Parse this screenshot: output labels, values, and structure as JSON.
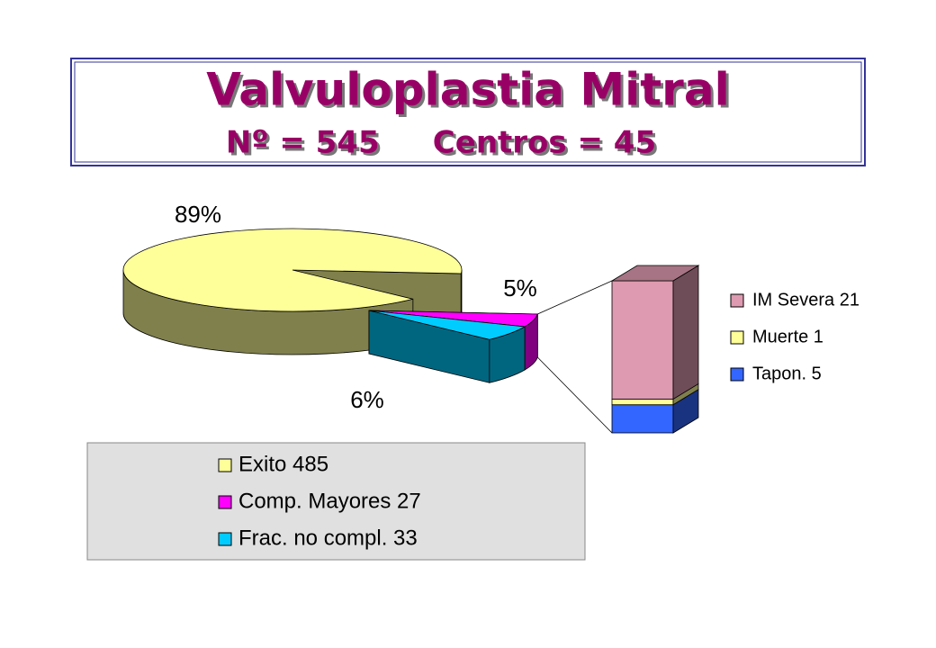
{
  "chart_data": [
    {
      "type": "pie",
      "title": "Valvuloplastia Mitral",
      "subtitle": "Nº = 545     Centros = 45",
      "categories": [
        "Exito 485",
        "Comp. Mayores 27",
        "Frac. no compl. 33"
      ],
      "values": [
        89,
        5,
        6
      ],
      "value_labels": [
        "89%",
        "5%",
        "6%"
      ],
      "colors": [
        "#ffff99",
        "#ff00ff",
        "#00ccff"
      ]
    },
    {
      "type": "bar",
      "stacked": true,
      "categories": [
        "IM Severa 21",
        "Muerte 1",
        "Tapon. 5"
      ],
      "values": [
        21,
        1,
        5
      ],
      "colors": [
        "#dd9ab0",
        "#ffff99",
        "#3366ff"
      ]
    }
  ]
}
